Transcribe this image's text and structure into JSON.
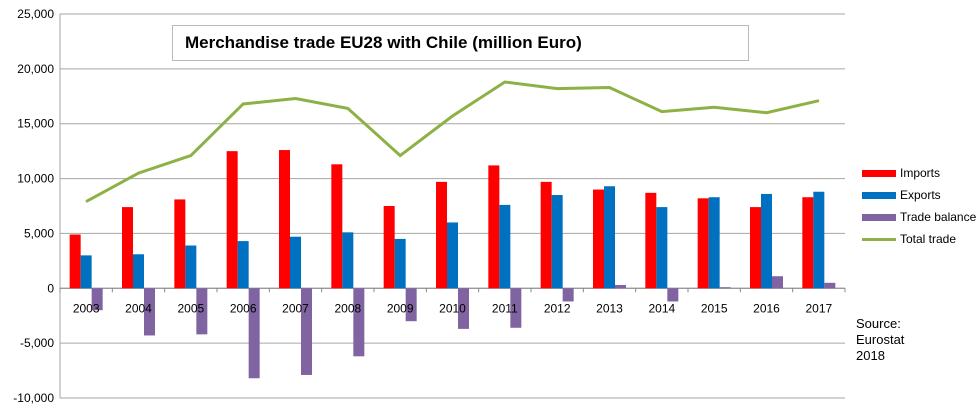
{
  "chart_data": {
    "type": "bar",
    "title": "Merchandise trade EU28 with Chile (million Euro)",
    "categories": [
      "2003",
      "2004",
      "2005",
      "2006",
      "2007",
      "2008",
      "2009",
      "2010",
      "2011",
      "2012",
      "2013",
      "2014",
      "2015",
      "2016",
      "2017"
    ],
    "series": [
      {
        "name": "Imports",
        "type": "bar",
        "color": "#ff0000",
        "values": [
          4900,
          7400,
          8100,
          12500,
          12600,
          11300,
          7500,
          9700,
          11200,
          9700,
          9000,
          8700,
          8200,
          7400,
          8300
        ]
      },
      {
        "name": "Exports",
        "type": "bar",
        "color": "#0070c0",
        "values": [
          3000,
          3100,
          3900,
          4300,
          4700,
          5100,
          4500,
          6000,
          7600,
          8500,
          9300,
          7400,
          8300,
          8600,
          8800
        ]
      },
      {
        "name": "Trade balance",
        "type": "bar",
        "color": "#8064a2",
        "values": [
          -2000,
          -4300,
          -4200,
          -8200,
          -7900,
          -6200,
          -3000,
          -3700,
          -3600,
          -1200,
          300,
          -1200,
          100,
          1100,
          500
        ]
      },
      {
        "name": "Total trade",
        "type": "line",
        "color": "#8db145",
        "values": [
          7900,
          10500,
          12100,
          16800,
          17300,
          16400,
          12100,
          15700,
          18800,
          18200,
          18300,
          16100,
          16500,
          16000,
          17100
        ]
      }
    ],
    "ylim": [
      -10000,
      25000
    ],
    "yticks": [
      -10000,
      -5000,
      0,
      5000,
      10000,
      15000,
      20000,
      25000
    ],
    "ytick_labels": [
      "-10,000",
      "-5,000",
      "0",
      "5,000",
      "10,000",
      "15,000",
      "20,000",
      "25,000"
    ],
    "grid": true,
    "legend": "right",
    "xlabel": "",
    "ylabel": ""
  },
  "source": [
    "Source:",
    "Eurostat",
    "2018"
  ]
}
